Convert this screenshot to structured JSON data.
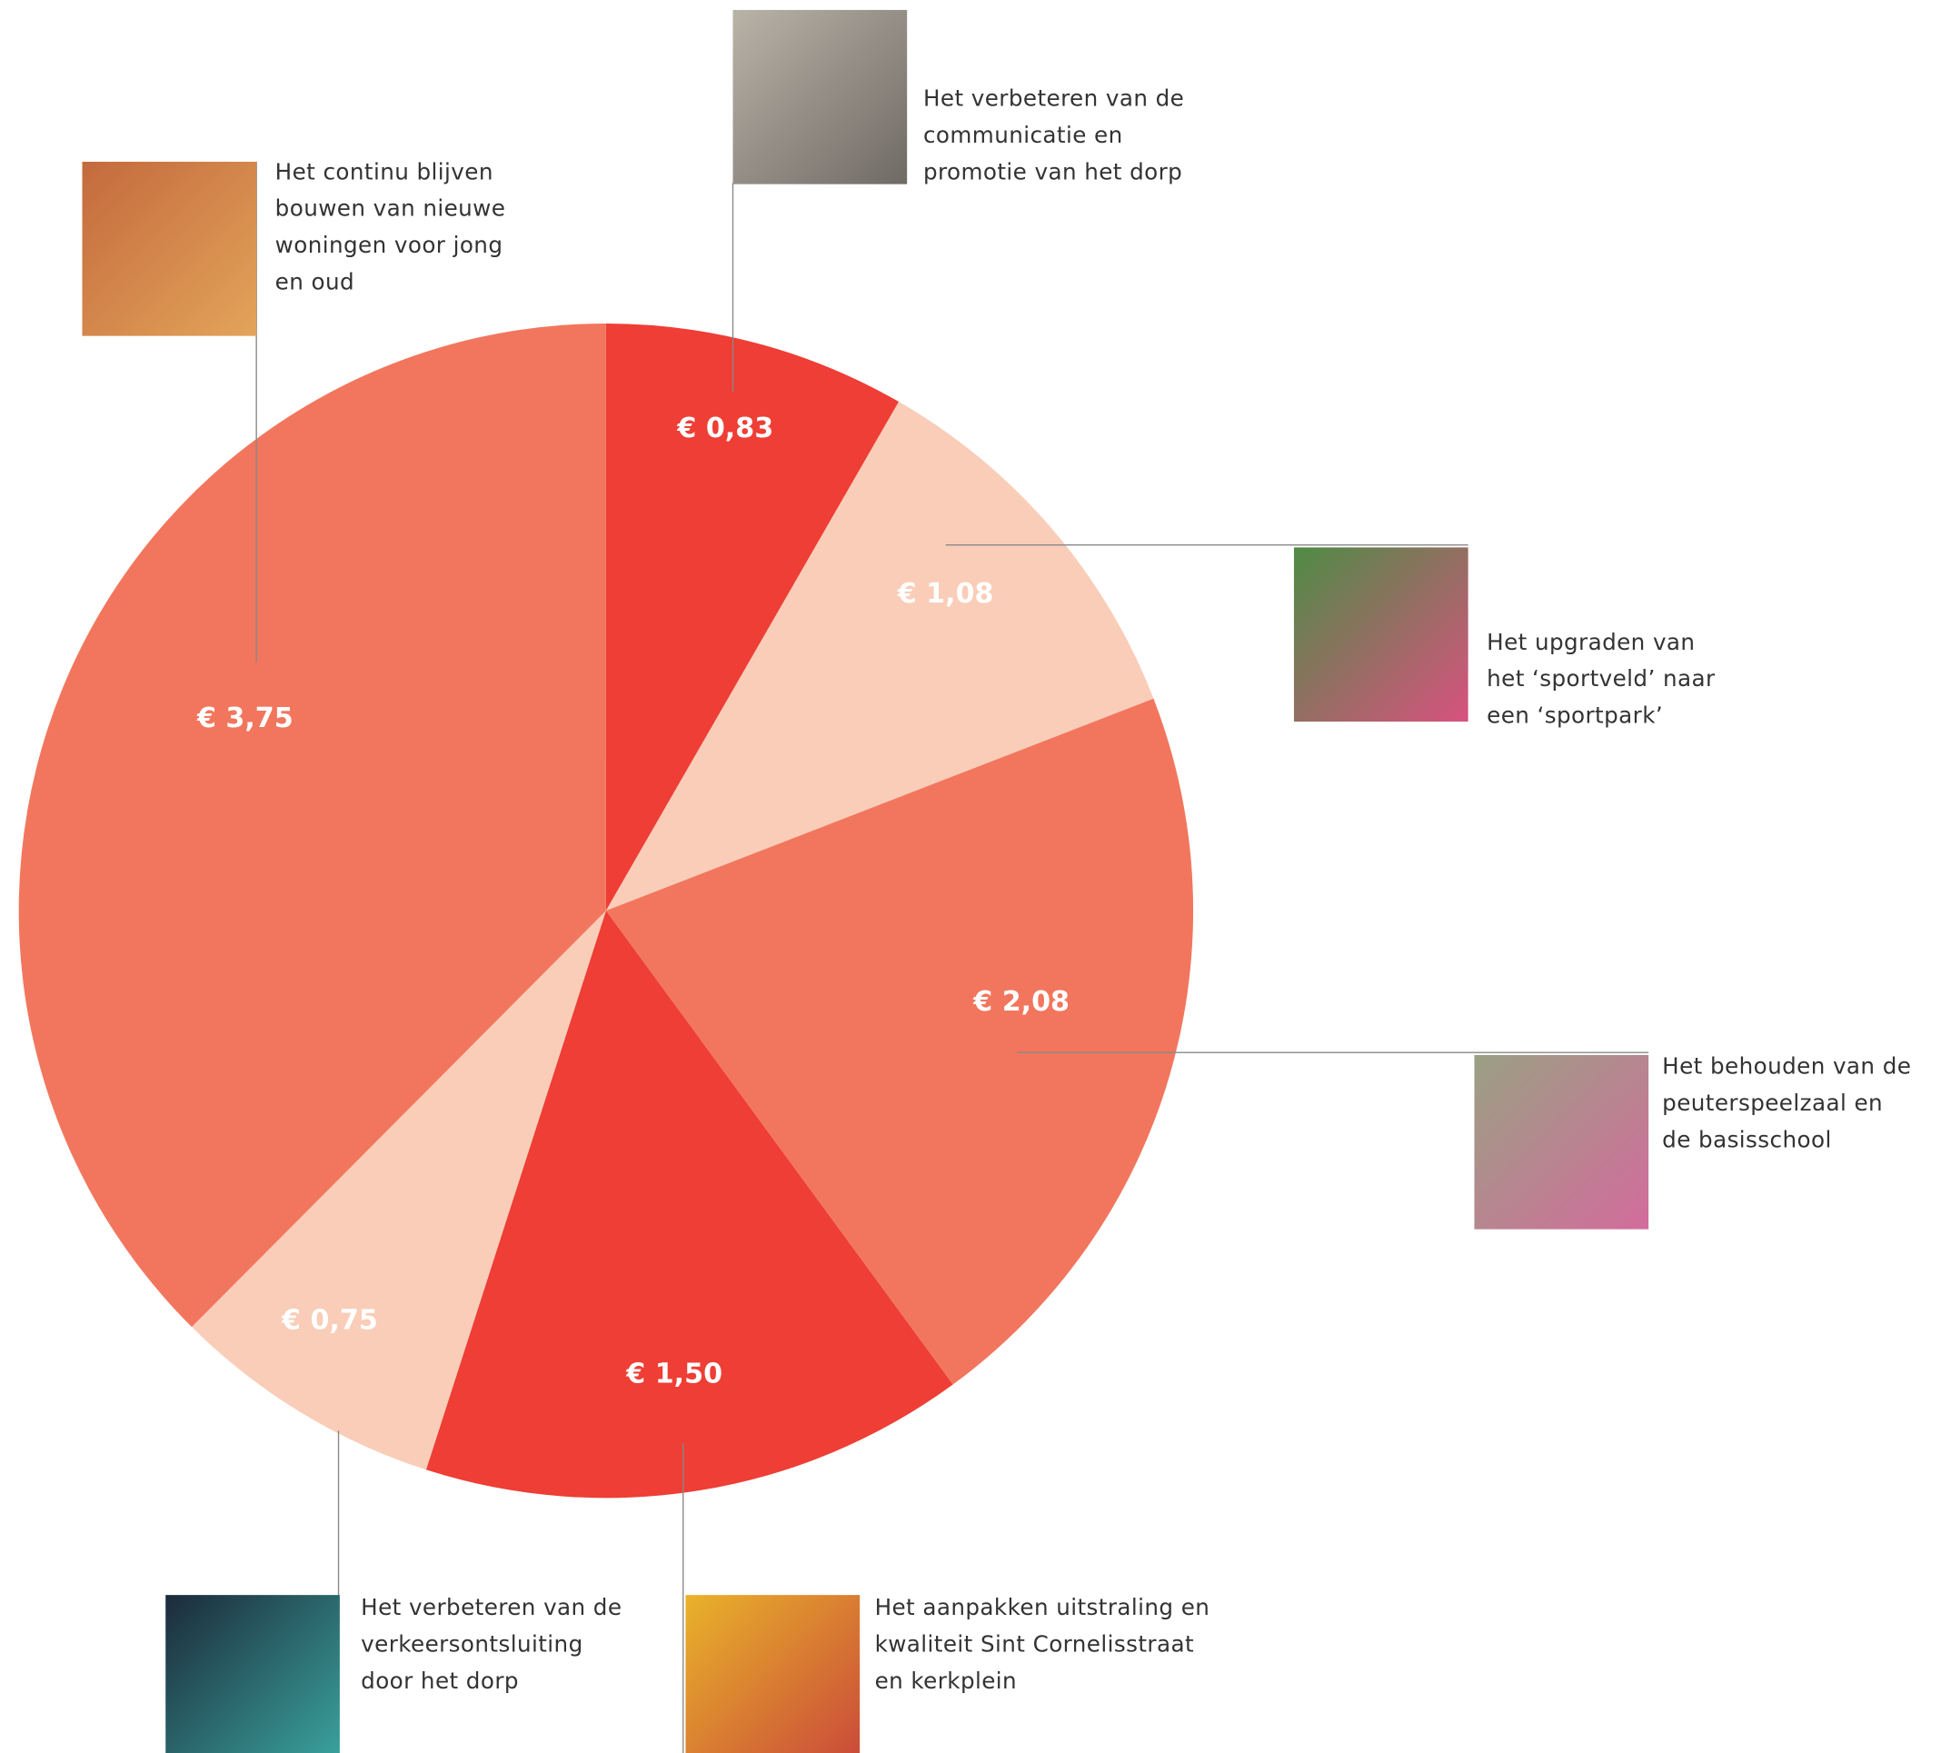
{
  "chart_data": {
    "type": "pie",
    "categories": [
      [
        "Het verbeteren van de",
        "communicatie en",
        "promotie van het dorp"
      ],
      [
        "Het upgraden van",
        "het ‘sportveld’ naar",
        "een ‘sportpark’"
      ],
      [
        "Het behouden van de",
        "peuterspeelzaal en",
        "de basisschool"
      ],
      [
        "Het aanpakken uitstraling en",
        "kwaliteit Sint Cornelisstraat",
        "en kerkplein"
      ],
      [
        "Het verbeteren van de",
        "verkeersontsluiting",
        "door het dorp"
      ],
      [
        "Het continu blijven",
        "bouwen van nieuwe",
        "woningen voor jong",
        "en oud"
      ]
    ],
    "values": [
      0.83,
      1.08,
      2.08,
      1.5,
      0.75,
      3.75
    ],
    "value_labels": [
      "€ 0,83",
      "€ 1,08",
      "€ 2,08",
      "€ 1,50",
      "€ 0,75",
      "€ 3,75"
    ],
    "colors": [
      "#ee3e35",
      "#f9cdb8",
      "#f2765d",
      "#ee3e35",
      "#f9cdb8",
      "#f2765d"
    ]
  }
}
